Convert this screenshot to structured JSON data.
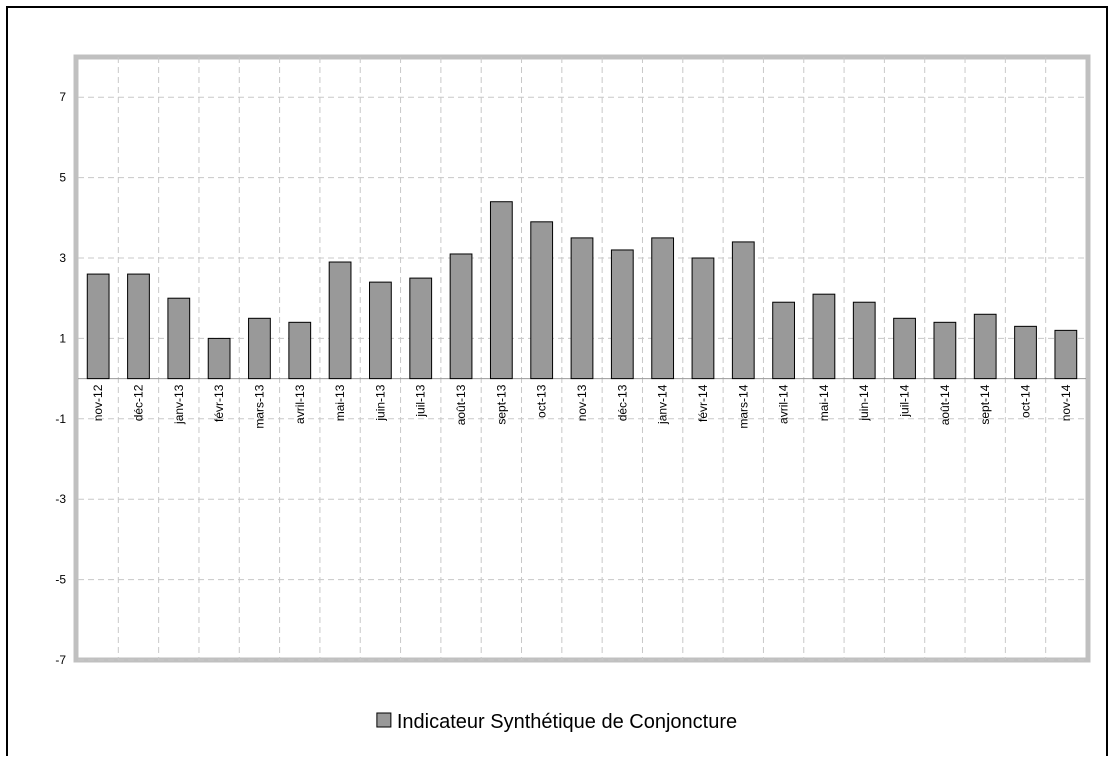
{
  "chart_data": {
    "type": "bar",
    "categories": [
      "nov-12",
      "déc-12",
      "janv-13",
      "févr-13",
      "mars-13",
      "avril-13",
      "mai-13",
      "juin-13",
      "juil-13",
      "août-13",
      "sept-13",
      "oct-13",
      "nov-13",
      "déc-13",
      "janv-14",
      "févr-14",
      "mars-14",
      "avril-14",
      "mai-14",
      "juin-14",
      "juil-14",
      "août-14",
      "sept-14",
      "oct-14",
      "nov-14"
    ],
    "series": [
      {
        "name": "Indicateur Synthétique de Conjoncture",
        "color": "#999999",
        "values": [
          2.6,
          2.6,
          2.0,
          1.0,
          1.5,
          1.4,
          2.9,
          2.4,
          2.5,
          3.1,
          4.4,
          3.9,
          3.5,
          3.2,
          3.5,
          3.0,
          3.4,
          1.9,
          2.1,
          1.9,
          1.5,
          1.4,
          1.6,
          1.3,
          1.2
        ]
      }
    ],
    "ylim": [
      -7,
      8
    ],
    "yticks": [
      -7,
      -5,
      -3,
      -1,
      1,
      3,
      5,
      7
    ],
    "grid": true,
    "legend": "bottom"
  }
}
